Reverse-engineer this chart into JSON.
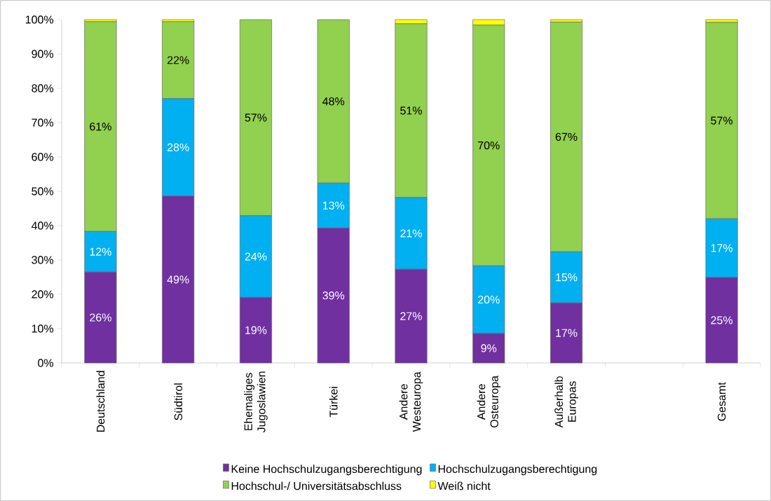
{
  "chart_data": {
    "type": "bar",
    "stacked": true,
    "categories": [
      "Deutschland",
      "Südtirol",
      "Ehemaliges Jugoslawien",
      "Türkei",
      "Andere Westeuropa",
      "Andere Osteuropa",
      "Außerhalb Europas",
      null,
      "Gesamt"
    ],
    "series": [
      {
        "name": "Keine Hochschulzugangsberechtigung",
        "color": "#7030a0",
        "values": [
          26.5,
          48.6,
          19.1,
          39.3,
          27.3,
          8.6,
          17.5,
          null,
          24.9
        ],
        "value_labels": [
          "26%",
          "49%",
          "19%",
          "39%",
          "27%",
          "9%",
          "17%",
          null,
          "25%"
        ]
      },
      {
        "name": "Hochschulzugangsberechtigung",
        "color": "#00b0f0",
        "values": [
          11.8,
          28.4,
          23.8,
          13.1,
          20.9,
          19.7,
          14.9,
          null,
          17.1
        ],
        "value_labels": [
          "12%",
          "28%",
          "24%",
          "13%",
          "21%",
          "20%",
          "15%",
          null,
          "17%"
        ]
      },
      {
        "name": "Hochschul-/ Universitätsabschluss",
        "color": "#92d050",
        "values": [
          61.1,
          22.4,
          57.1,
          47.6,
          50.6,
          70.1,
          66.9,
          null,
          57.2
        ],
        "value_labels": [
          "61%",
          "22%",
          "57%",
          "48%",
          "51%",
          "70%",
          "67%",
          null,
          "57%"
        ]
      },
      {
        "name": "Weiß nicht",
        "color": "#ffff00",
        "values": [
          0.6,
          0.6,
          0,
          0,
          1.2,
          1.6,
          0.7,
          null,
          0.8
        ]
      }
    ],
    "ylim": [
      0,
      100
    ],
    "yticks": [
      {
        "value": 0,
        "label": "0%"
      },
      {
        "value": 10,
        "label": "10%"
      },
      {
        "value": 20,
        "label": "20%"
      },
      {
        "value": 30,
        "label": "30%"
      },
      {
        "value": 40,
        "label": "40%"
      },
      {
        "value": 50,
        "label": "50%"
      },
      {
        "value": 60,
        "label": "60%"
      },
      {
        "value": 70,
        "label": "70%"
      },
      {
        "value": 80,
        "label": "80%"
      },
      {
        "value": 90,
        "label": "90%"
      },
      {
        "value": 100,
        "label": "100%"
      }
    ],
    "grid": false,
    "legend": "bottom"
  }
}
